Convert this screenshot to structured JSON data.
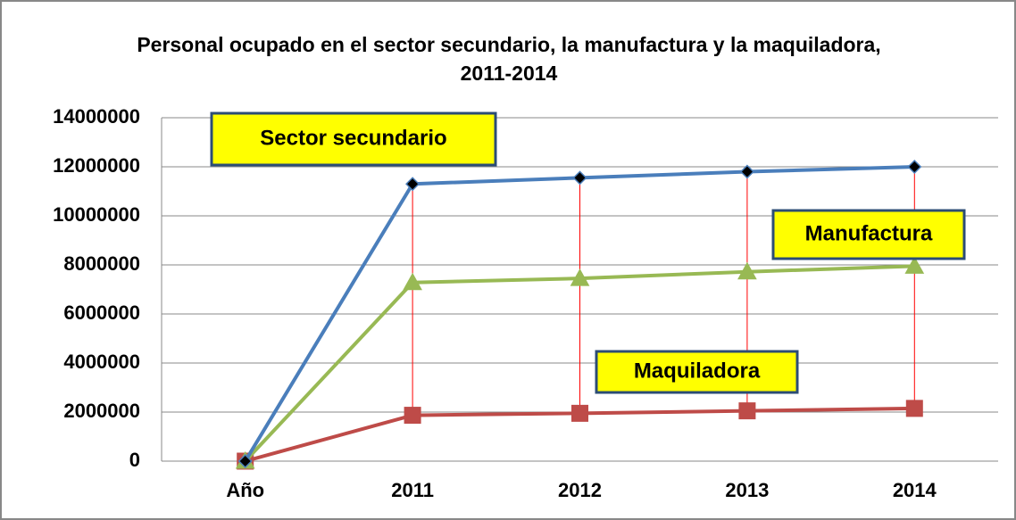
{
  "chart_data": {
    "type": "line",
    "title": "Personal ocupado en el sector secundario, la manufactura y la maquiladora, 2011-2014",
    "categories": [
      "Año",
      "2011",
      "2012",
      "2013",
      "2014"
    ],
    "series": [
      {
        "name": "Sector secundario",
        "color": "#4a7ebb",
        "marker": "diamond",
        "values": [
          0,
          11300000,
          11550000,
          11800000,
          12000000
        ]
      },
      {
        "name": "Manufactura",
        "color": "#98b954",
        "marker": "triangle",
        "values": [
          0,
          7280000,
          7450000,
          7720000,
          7950000
        ]
      },
      {
        "name": "Maquiladora",
        "color": "#be4b48",
        "marker": "square",
        "values": [
          0,
          1870000,
          1950000,
          2050000,
          2150000
        ]
      }
    ],
    "ylim": [
      0,
      14000000
    ],
    "yticks": [
      0,
      2000000,
      4000000,
      6000000,
      8000000,
      10000000,
      12000000,
      14000000
    ],
    "grid": true,
    "high_low_lines": "#ff0000"
  }
}
